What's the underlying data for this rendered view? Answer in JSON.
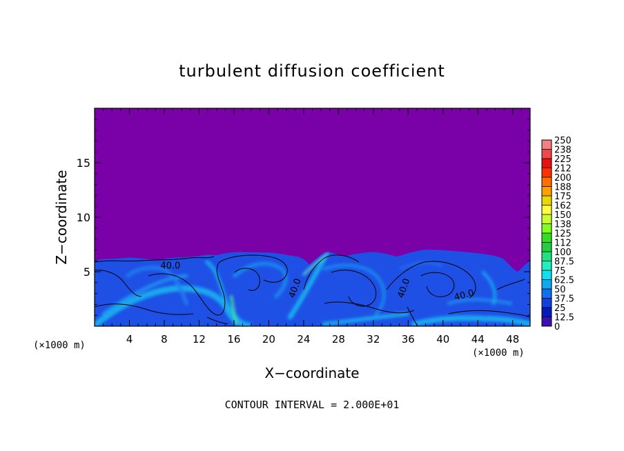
{
  "chart_data": {
    "type": "heatmap",
    "title": "turbulent diffusion coefficient",
    "xlabel": "X−coordinate",
    "ylabel": "Z−coordinate",
    "x_unit_left": "(×1000 m)",
    "x_unit_right": "(×1000 m)",
    "xlim": [
      0,
      50
    ],
    "ylim": [
      0,
      20
    ],
    "x_ticks": [
      4,
      8,
      12,
      16,
      20,
      24,
      28,
      32,
      36,
      40,
      44,
      48
    ],
    "y_ticks": [
      5,
      10,
      15
    ],
    "footnote": "CONTOUR INTERVAL = 2.000E+01",
    "contour_labels": [
      {
        "text": "40.0",
        "x": 8.7,
        "z": 5.3,
        "rotate": 0
      },
      {
        "text": "40.0",
        "x": 23.3,
        "z": 3.4,
        "rotate": -70
      },
      {
        "text": "40.0",
        "x": 35.8,
        "z": 3.4,
        "rotate": -70
      },
      {
        "text": "40.0",
        "x": 42.5,
        "z": 2.6,
        "rotate": -15
      }
    ],
    "colorbar": {
      "levels": [
        "250",
        "238",
        "225",
        "212",
        "200",
        "188",
        "175",
        "162",
        "150",
        "138",
        "125",
        "112",
        "100",
        "87.5",
        "75",
        "62.5",
        "50",
        "37.5",
        "25",
        "12.5",
        "0"
      ],
      "colors": [
        "#f28080",
        "#f04848",
        "#e81010",
        "#ff3000",
        "#ff7000",
        "#ffa000",
        "#e8d800",
        "#ffff40",
        "#c8ff30",
        "#80ff20",
        "#30e020",
        "#20d040",
        "#20e080",
        "#20f0c0",
        "#10e0f0",
        "#10a8f0",
        "#1070f0",
        "#1040e0",
        "#0818c0",
        "#3c10b0",
        "#7a00a8"
      ]
    },
    "colors": {
      "background_field": "#7a00a8",
      "turbulent_layer": "#1e50e6",
      "high_values": "#1ab8f0"
    }
  }
}
